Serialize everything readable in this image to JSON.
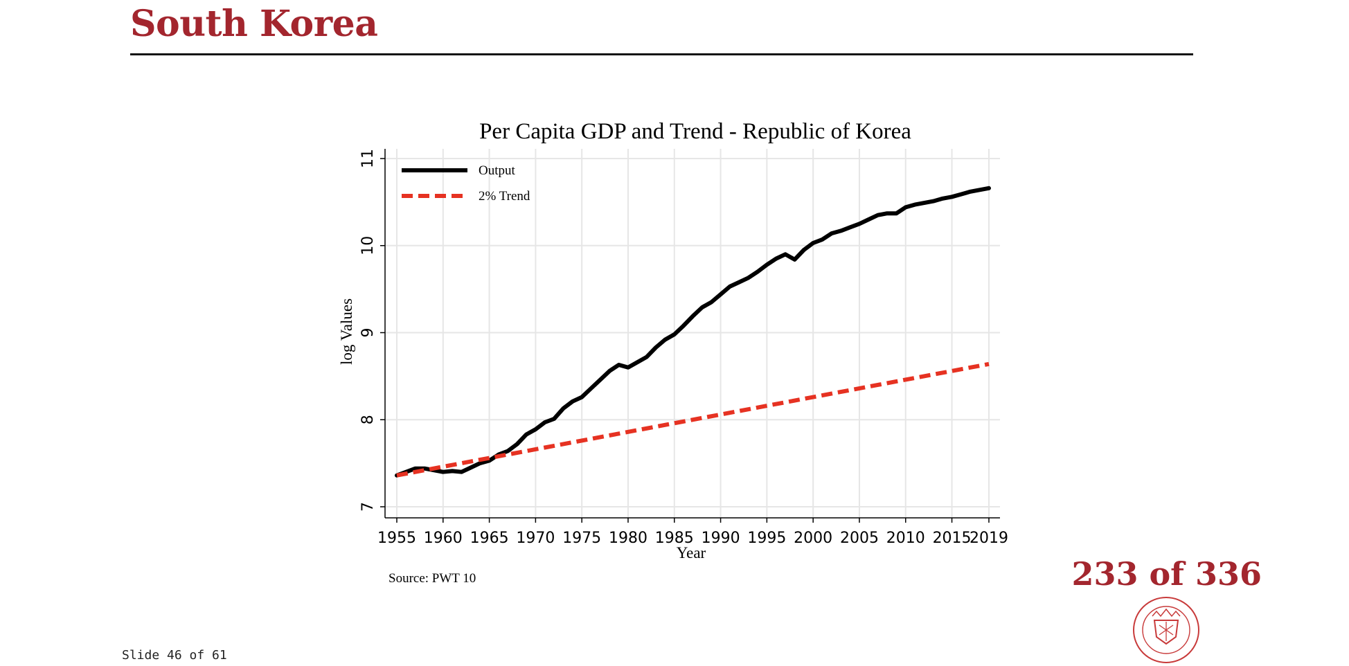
{
  "page": {
    "title": "South Korea",
    "counter": "233 of 336",
    "slide_number": "Slide 46 of 61",
    "brand_color": "#a3262e"
  },
  "chart_data": {
    "type": "line",
    "title": "Per Capita GDP and Trend - Republic of Korea",
    "xlabel": "Year",
    "ylabel": "log Values",
    "source_note": "Source: PWT 10",
    "xlim": [
      1955,
      2019
    ],
    "ylim": [
      7,
      11
    ],
    "x_ticks": [
      1955,
      1960,
      1965,
      1970,
      1975,
      1980,
      1985,
      1990,
      1995,
      2000,
      2005,
      2010,
      2015,
      2019
    ],
    "y_ticks": [
      7,
      8,
      9,
      10,
      11
    ],
    "grid": true,
    "legend_position": "top-left",
    "series": [
      {
        "name": "Output",
        "color": "#000000",
        "style": "solid",
        "x": [
          1955,
          1956,
          1957,
          1958,
          1959,
          1960,
          1961,
          1962,
          1963,
          1964,
          1965,
          1966,
          1967,
          1968,
          1969,
          1970,
          1971,
          1972,
          1973,
          1974,
          1975,
          1976,
          1977,
          1978,
          1979,
          1980,
          1981,
          1982,
          1983,
          1984,
          1985,
          1986,
          1987,
          1988,
          1989,
          1990,
          1991,
          1992,
          1993,
          1994,
          1995,
          1996,
          1997,
          1998,
          1999,
          2000,
          2001,
          2002,
          2003,
          2004,
          2005,
          2006,
          2007,
          2008,
          2009,
          2010,
          2011,
          2012,
          2013,
          2014,
          2015,
          2016,
          2017,
          2018,
          2019
        ],
        "y": [
          7.36,
          7.4,
          7.44,
          7.44,
          7.42,
          7.4,
          7.41,
          7.4,
          7.45,
          7.5,
          7.53,
          7.6,
          7.64,
          7.72,
          7.83,
          7.89,
          7.97,
          8.01,
          8.13,
          8.21,
          8.26,
          8.36,
          8.46,
          8.56,
          8.63,
          8.6,
          8.66,
          8.72,
          8.83,
          8.92,
          8.98,
          9.08,
          9.19,
          9.29,
          9.35,
          9.44,
          9.53,
          9.58,
          9.63,
          9.7,
          9.78,
          9.85,
          9.9,
          9.84,
          9.95,
          10.03,
          10.07,
          10.14,
          10.17,
          10.21,
          10.25,
          10.3,
          10.35,
          10.37,
          10.37,
          10.44,
          10.47,
          10.49,
          10.51,
          10.54,
          10.56,
          10.59,
          10.62,
          10.64,
          10.66
        ]
      },
      {
        "name": "2% Trend",
        "color": "#e63222",
        "style": "dashed",
        "x": [
          1955,
          2019
        ],
        "y": [
          7.36,
          8.64
        ]
      }
    ]
  }
}
